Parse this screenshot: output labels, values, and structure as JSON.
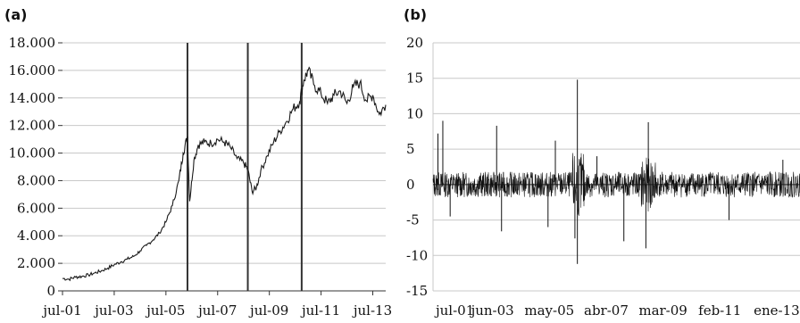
{
  "chart_data": [
    {
      "panel_label": "(a)",
      "type": "line",
      "ylim": [
        0,
        18000
      ],
      "y_ticks": [
        "0",
        "2.000",
        "4.000",
        "6.000",
        "8.000",
        "10.000",
        "12.000",
        "14.000",
        "16.000",
        "18.000"
      ],
      "y_tick_values": [
        0,
        2000,
        4000,
        6000,
        8000,
        10000,
        12000,
        14000,
        16000,
        18000
      ],
      "x_ticks": [
        "jul-01",
        "jul-03",
        "jul-05",
        "jul-07",
        "jul-09",
        "jul-11",
        "jul-13"
      ],
      "x_range": [
        "2001-07",
        "2014-01"
      ],
      "grid": true,
      "vertical_markers": [
        "2006-05",
        "2008-09",
        "2010-10"
      ],
      "series": [
        {
          "x": [
            "2001-07",
            "2001-10",
            "2002-01",
            "2002-04",
            "2002-07",
            "2002-10",
            "2003-01",
            "2003-04",
            "2003-07",
            "2003-10",
            "2004-01",
            "2004-04",
            "2004-07",
            "2004-10",
            "2005-01",
            "2005-04",
            "2005-07",
            "2005-10",
            "2006-01",
            "2006-03",
            "2006-05",
            "2006-06",
            "2006-08",
            "2006-10",
            "2007-01",
            "2007-04",
            "2007-07",
            "2007-10",
            "2008-01",
            "2008-04",
            "2008-07",
            "2008-09",
            "2008-11",
            "2009-01",
            "2009-03",
            "2009-06",
            "2009-09",
            "2009-12",
            "2010-03",
            "2010-06",
            "2010-09",
            "2010-11",
            "2011-01",
            "2011-04",
            "2011-07",
            "2011-10",
            "2012-01",
            "2012-04",
            "2012-07",
            "2012-10",
            "2013-01",
            "2013-04",
            "2013-07",
            "2013-10",
            "2014-01"
          ],
          "y": [
            900,
            850,
            1000,
            1050,
            1150,
            1300,
            1450,
            1650,
            1900,
            2100,
            2300,
            2500,
            2900,
            3300,
            3700,
            4200,
            5000,
            6200,
            8000,
            10000,
            11200,
            6500,
            9500,
            10600,
            10800,
            10700,
            11000,
            10800,
            10400,
            9600,
            9300,
            8800,
            7200,
            7500,
            8700,
            9800,
            10800,
            11600,
            12300,
            13200,
            13700,
            15300,
            16000,
            14900,
            14300,
            13600,
            14200,
            14500,
            13600,
            14800,
            15100,
            13800,
            14200,
            12800,
            13500
          ]
        }
      ]
    },
    {
      "panel_label": "(b)",
      "type": "line",
      "ylim": [
        -15,
        20
      ],
      "y_ticks": [
        "-15",
        "-10",
        "-5",
        "0",
        "5",
        "10",
        "15",
        "20"
      ],
      "y_tick_values": [
        -15,
        -10,
        -5,
        0,
        5,
        10,
        15,
        20
      ],
      "x_ticks": [
        "jul-01",
        "jun-03",
        "may-05",
        "abr-07",
        "mar-09",
        "feb-11",
        "ene-13"
      ],
      "x_range": [
        "2001-07",
        "2014-01"
      ],
      "grid": true,
      "series": [
        {
          "spikes": [
            {
              "x": "2001-09",
              "y": 7.2
            },
            {
              "x": "2001-11",
              "y": 9.0
            },
            {
              "x": "2002-02",
              "y": -4.5
            },
            {
              "x": "2003-09",
              "y": 8.3
            },
            {
              "x": "2003-11",
              "y": -6.6
            },
            {
              "x": "2005-06",
              "y": -6.0
            },
            {
              "x": "2005-09",
              "y": 6.2
            },
            {
              "x": "2006-05",
              "y": -7.6
            },
            {
              "x": "2006-06",
              "y": 14.8
            },
            {
              "x": "2006-06",
              "y": -11.2
            },
            {
              "x": "2007-02",
              "y": 4.0
            },
            {
              "x": "2008-01",
              "y": -8.0
            },
            {
              "x": "2008-10",
              "y": -9.0
            },
            {
              "x": "2008-11",
              "y": 8.8
            },
            {
              "x": "2011-08",
              "y": -5.0
            },
            {
              "x": "2013-06",
              "y": 3.5
            }
          ],
          "typical_amplitude": 1.8
        }
      ]
    }
  ]
}
